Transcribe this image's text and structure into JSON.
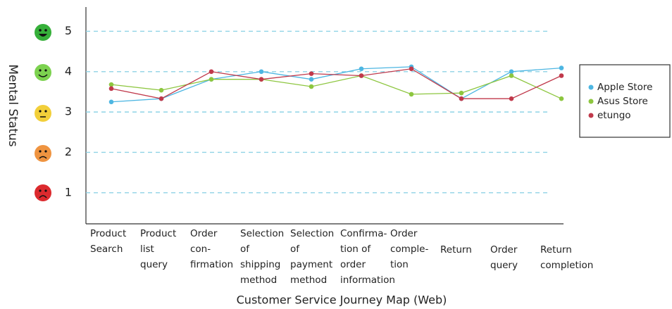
{
  "chart_data": {
    "type": "line",
    "y_label": "Mental Status",
    "x_label": "Customer Service Journey Map (Web)",
    "categories": [
      "Product\nSearch",
      "Product\nlist\nquery",
      "Order\ncon-\nfirmation",
      "Selection\nof\nshipping\nmethod",
      "Selection\nof\npayment\nmethod",
      "Confirma-\ntion of\norder\ninformation",
      "Order\ncomple-\ntion",
      "Return",
      "Order\nquery",
      "Return\ncompletion"
    ],
    "series": [
      {
        "name": "Apple Store",
        "color": "#4db6e2",
        "values": [
          3.25,
          3.33,
          3.81,
          4.0,
          3.81,
          4.07,
          4.12,
          3.33,
          4.0,
          4.09
        ]
      },
      {
        "name": "Asus Store",
        "color": "#8dc63f",
        "values": [
          3.68,
          3.54,
          3.81,
          3.81,
          3.63,
          3.9,
          3.44,
          3.47,
          3.9,
          3.33
        ]
      },
      {
        "name": "etungo",
        "color": "#c0394b",
        "values": [
          3.58,
          3.33,
          4.0,
          3.81,
          3.95,
          3.9,
          4.07,
          3.33,
          3.33,
          3.9
        ]
      }
    ],
    "ylim": [
      0.23,
      5.6
    ],
    "yticks": [
      1,
      2,
      3,
      4,
      5
    ],
    "grid": true,
    "legend": "right"
  }
}
